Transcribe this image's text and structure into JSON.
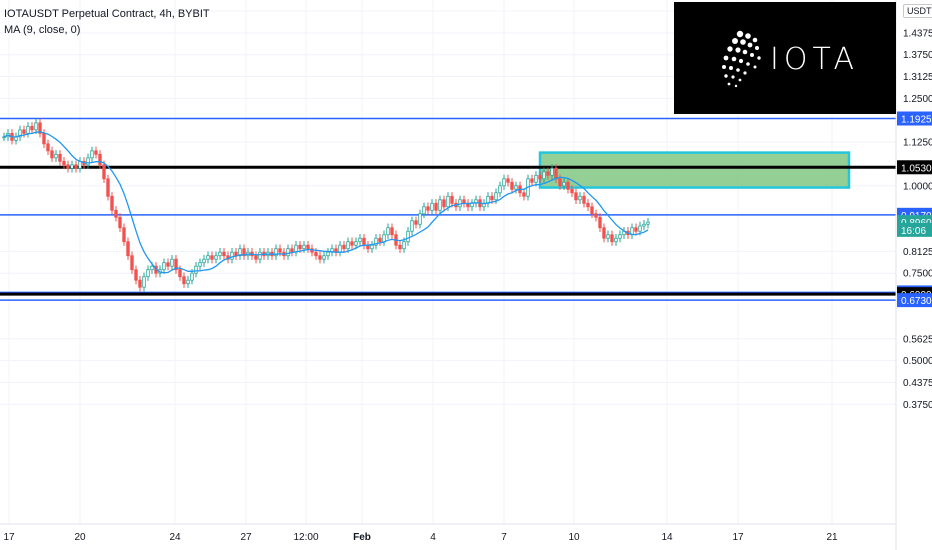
{
  "header": {
    "symbol_line": "IOTAUSDT Perpetual Contract, 4h, BYBIT",
    "indicator_line": "MA (9, close, 0)",
    "currency": "USDT"
  },
  "logo": {
    "text": "IOTA"
  },
  "colors": {
    "up": "#26a69a",
    "down": "#ef5350",
    "ma": "#2196f3",
    "level_blue": "#2962ff",
    "level_black": "#000000",
    "zone_fill": "#81c784",
    "zone_border": "#26c6da",
    "grid": "#f0f3fa"
  },
  "chart_data": {
    "type": "candlestick",
    "title": "IOTAUSDT Perpetual Contract, 4h, BYBIT",
    "price_axis": [
      "1.5000",
      "1.4375",
      "1.3750",
      "1.3125",
      "1.2500",
      "1.1250",
      "1.0000",
      "0.8125",
      "0.7500",
      "0.5625",
      "0.5000",
      "0.4375",
      "0.3750"
    ],
    "time_axis": [
      "17",
      "20",
      "24",
      "27",
      "12:00",
      "Feb",
      "4",
      "7",
      "10",
      "14",
      "17",
      "21"
    ],
    "ylim": [
      0.36,
      1.52
    ],
    "price_labels": [
      {
        "text": "1.1925",
        "value": 1.1925,
        "kind": "blue"
      },
      {
        "text": "1.0530",
        "value": 1.053,
        "kind": "black"
      },
      {
        "text": "0.9170",
        "value": 0.917,
        "kind": "blue"
      },
      {
        "text": "0.8960",
        "value": 0.896,
        "kind": "current"
      },
      {
        "text": "16:06",
        "value": 0.874,
        "kind": "countdown"
      },
      {
        "text": "0.6950",
        "value": 0.695,
        "kind": "blue"
      },
      {
        "text": "0.6900",
        "value": 0.69,
        "kind": "black"
      },
      {
        "text": "0.6730",
        "value": 0.673,
        "kind": "blue"
      }
    ],
    "levels": [
      {
        "value": 1.1925,
        "color": "blue"
      },
      {
        "value": 1.053,
        "color": "black"
      },
      {
        "value": 0.917,
        "color": "blue"
      },
      {
        "value": 0.695,
        "color": "blue"
      },
      {
        "value": 0.69,
        "color": "black"
      },
      {
        "value": 0.673,
        "color": "blue"
      }
    ],
    "zone": {
      "top": 1.095,
      "bottom": 0.995
    },
    "closes": [
      1.14,
      1.15,
      1.13,
      1.14,
      1.16,
      1.15,
      1.17,
      1.16,
      1.18,
      1.15,
      1.12,
      1.1,
      1.08,
      1.09,
      1.07,
      1.06,
      1.05,
      1.06,
      1.05,
      1.07,
      1.06,
      1.08,
      1.1,
      1.09,
      1.06,
      1.02,
      0.97,
      0.93,
      0.91,
      0.88,
      0.84,
      0.8,
      0.76,
      0.73,
      0.71,
      0.74,
      0.76,
      0.77,
      0.75,
      0.76,
      0.78,
      0.77,
      0.79,
      0.76,
      0.74,
      0.72,
      0.73,
      0.75,
      0.77,
      0.78,
      0.79,
      0.8,
      0.79,
      0.8,
      0.81,
      0.8,
      0.79,
      0.81,
      0.8,
      0.82,
      0.8,
      0.81,
      0.8,
      0.79,
      0.81,
      0.8,
      0.81,
      0.8,
      0.82,
      0.81,
      0.8,
      0.82,
      0.81,
      0.83,
      0.82,
      0.83,
      0.82,
      0.81,
      0.8,
      0.79,
      0.8,
      0.81,
      0.82,
      0.81,
      0.83,
      0.82,
      0.84,
      0.83,
      0.84,
      0.85,
      0.83,
      0.82,
      0.83,
      0.85,
      0.84,
      0.86,
      0.88,
      0.86,
      0.83,
      0.82,
      0.84,
      0.87,
      0.9,
      0.89,
      0.92,
      0.94,
      0.93,
      0.95,
      0.93,
      0.96,
      0.94,
      0.97,
      0.95,
      0.94,
      0.96,
      0.95,
      0.94,
      0.95,
      0.96,
      0.94,
      0.95,
      0.97,
      0.96,
      0.98,
      1.0,
      1.02,
      1.01,
      0.99,
      1.0,
      0.98,
      0.97,
      1.02,
      1.01,
      1.03,
      1.02,
      1.04,
      1.03,
      1.05,
      1.02,
      1.0,
      1.01,
      0.99,
      0.98,
      0.96,
      0.97,
      0.95,
      0.94,
      0.92,
      0.91,
      0.88,
      0.85,
      0.86,
      0.84,
      0.85,
      0.86,
      0.87,
      0.86,
      0.88,
      0.87,
      0.885,
      0.89,
      0.896
    ]
  }
}
